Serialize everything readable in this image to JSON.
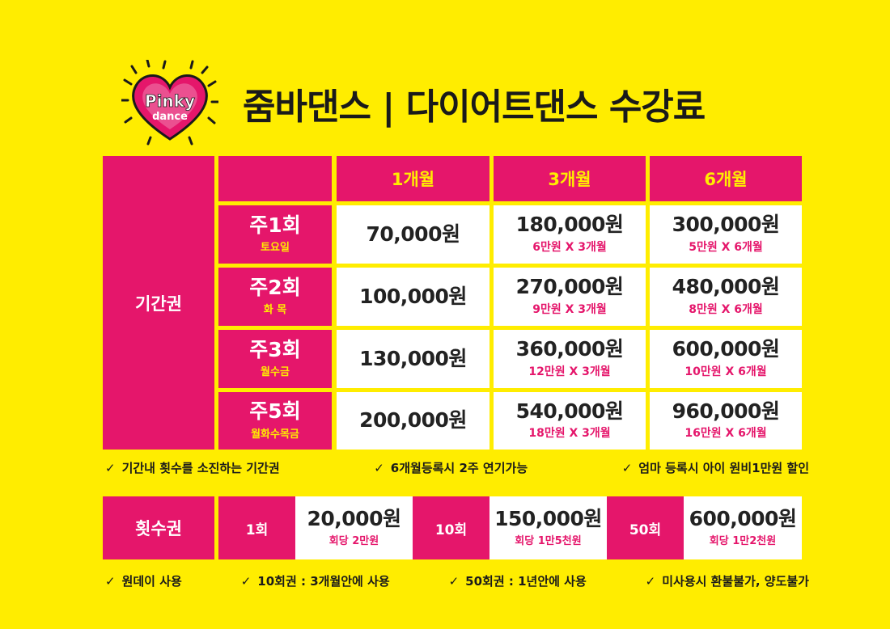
{
  "logo": {
    "line1": "Pinky",
    "line2": "dance"
  },
  "title": "줌바댄스 | 다이어트댄스  수강료",
  "colors": {
    "background": "#FFED00",
    "accent": "#E5166B",
    "highlight": "#FFED00"
  },
  "period_pass": {
    "side_label": "기간권",
    "columns": [
      "1개월",
      "3개월",
      "6개월"
    ],
    "rows": [
      {
        "name": "주1회",
        "days": "토요일",
        "m1": "70,000원",
        "m3": "180,000원",
        "m3_note": "6만원 X 3개월",
        "m6": "300,000원",
        "m6_note": "5만원 X 6개월"
      },
      {
        "name": "주2회",
        "days": "화 목",
        "m1": "100,000원",
        "m3": "270,000원",
        "m3_note": "9만원 X 3개월",
        "m6": "480,000원",
        "m6_note": "8만원 X 6개월"
      },
      {
        "name": "주3회",
        "days": "월수금",
        "m1": "130,000원",
        "m3": "360,000원",
        "m3_note": "12만원 X 3개월",
        "m6": "600,000원",
        "m6_note": "10만원 X 6개월"
      },
      {
        "name": "주5회",
        "days": "월화수목금",
        "m1": "200,000원",
        "m3": "540,000원",
        "m3_note": "18만원 X 3개월",
        "m6": "960,000원",
        "m6_note": "16만원 X 6개월"
      }
    ],
    "notes": [
      "기간내 횟수를 소진하는 기간권",
      "6개월등록시 2주 연기가능",
      "엄마 등록시 아이 원비1만원 할인"
    ]
  },
  "count_pass": {
    "side_label": "횟수권",
    "items": [
      {
        "label": "1회",
        "price": "20,000원",
        "note": "회당 2만원"
      },
      {
        "label": "10회",
        "price": "150,000원",
        "note": "회당 1만5천원"
      },
      {
        "label": "50회",
        "price": "600,000원",
        "note": "회당 1만2천원"
      }
    ],
    "notes": [
      "원데이 사용",
      "10회권 : 3개월안에 사용",
      "50회권 : 1년안에 사용",
      "미사용시 환불불가, 양도불가"
    ]
  },
  "icons": {
    "check": "check-icon",
    "logo": "heart-logo-icon"
  }
}
